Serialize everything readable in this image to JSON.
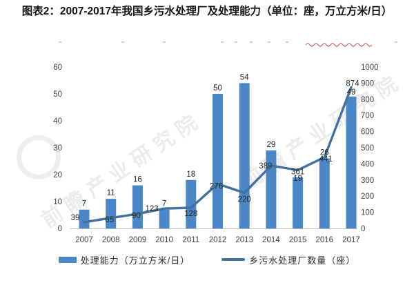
{
  "page": {
    "title": "图表2：2007-2017年我国乡污水处理厂及处理能力（单位：座，万立方米/日）"
  },
  "watermark": {
    "text": "前瞻产业研究院"
  },
  "legend": {
    "items": [
      {
        "label": "处理能力（万立方米/日）",
        "marker": "bar",
        "color": "#4A86C8"
      },
      {
        "label": "乡污水处理厂数量（座）",
        "marker": "line",
        "color": "#41719C"
      }
    ]
  },
  "chart_data": {
    "type": "bar+line",
    "title": "图表2：2007-2017年我国乡污水处理厂及处理能力（单位：座，万立方米/日）",
    "categories": [
      "2007",
      "2008",
      "2009",
      "2010",
      "2011",
      "2012",
      "2013",
      "2014",
      "2015",
      "2016",
      "2017"
    ],
    "series": [
      {
        "name": "处理能力（万立方米/日）",
        "type": "bar",
        "axis": "left",
        "color": "#4A86C8",
        "values": [
          7,
          11,
          16,
          7,
          18,
          50,
          54,
          29,
          19,
          26,
          49
        ]
      },
      {
        "name": "乡污水处理厂数量（座）",
        "type": "line",
        "axis": "right",
        "color": "#41719C",
        "values": [
          39,
          65,
          90,
          123,
          128,
          276,
          220,
          389,
          361,
          441,
          874
        ]
      }
    ],
    "left_axis": {
      "min": 0,
      "max": 60,
      "step": 10,
      "ticks": [
        0,
        10,
        20,
        30,
        40,
        50,
        60
      ]
    },
    "right_axis": {
      "min": 0,
      "max": 1000,
      "step": 100,
      "ticks": [
        0,
        100,
        200,
        300,
        400,
        500,
        600,
        700,
        800,
        900,
        1000
      ]
    },
    "grid": false,
    "data_labels": true,
    "legend_position": "bottom",
    "axis_line_color": "#BFBFBF",
    "tick_label_color": "#3f3f3f",
    "data_label_color": "#262626"
  }
}
